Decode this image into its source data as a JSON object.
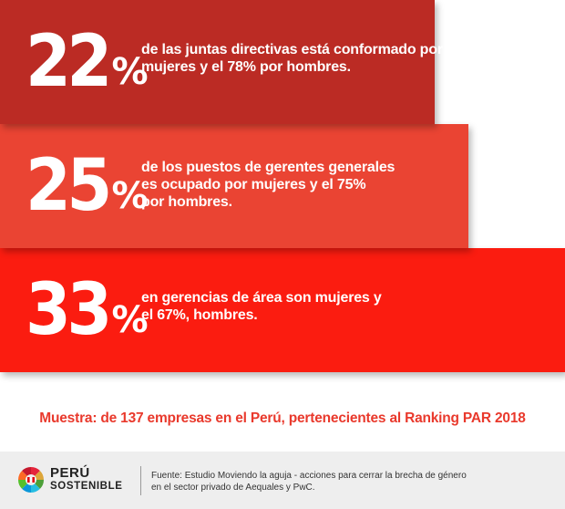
{
  "stats": [
    {
      "number": "22",
      "percent_sign": "%",
      "lines": [
        "de las juntas directivas está conformado por",
        "mujeres y el 78% por hombres."
      ],
      "color": "#bb2b24"
    },
    {
      "number": "25",
      "percent_sign": "%",
      "lines": [
        "de los puestos de gerentes generales",
        "es ocupado por mujeres y el 75%",
        "por hombres."
      ],
      "color": "#ea4433"
    },
    {
      "number": "33",
      "percent_sign": "%",
      "lines": [
        "en gerencias de área son mujeres y",
        "el 67%, hombres."
      ],
      "color": "#fb1c10"
    }
  ],
  "sample_note": "Muestra: de 137 empresas en el Perú, pertenecientes al Ranking PAR 2018",
  "footer": {
    "logo_line1": "PERÚ",
    "logo_line2": "SOSTENIBLE",
    "logo_icon": "sdg-wheel-icon",
    "source_lines": [
      "Fuente: Estudio Moviendo la aguja - acciones para cerrar la brecha de género",
      "en el sector privado de Aequales y PwC."
    ]
  }
}
